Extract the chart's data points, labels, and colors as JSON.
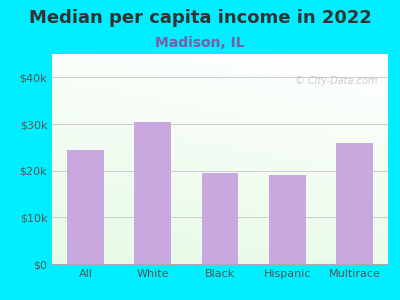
{
  "title": "Median per capita income in 2022",
  "subtitle": "Madison, IL",
  "categories": [
    "All",
    "White",
    "Black",
    "Hispanic",
    "Multirace"
  ],
  "values": [
    24500,
    30500,
    19500,
    19000,
    26000
  ],
  "bar_color": "#c9a8e0",
  "title_fontsize": 13,
  "subtitle_fontsize": 10,
  "subtitle_color": "#7b5ea7",
  "title_color": "#333333",
  "bg_outer": "#00eeff",
  "tick_color": "#555555",
  "ylim": [
    0,
    45000
  ],
  "yticks": [
    0,
    10000,
    20000,
    30000,
    40000
  ],
  "ytick_labels": [
    "$0",
    "$10k",
    "$20k",
    "$30k",
    "$40k"
  ],
  "watermark": "© City-Data.com",
  "grid_color": "#cccccc"
}
